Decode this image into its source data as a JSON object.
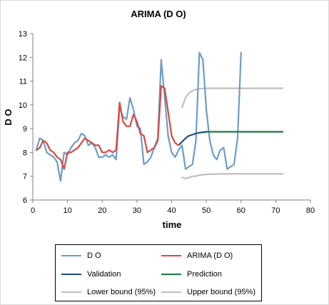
{
  "chart_data": {
    "type": "line",
    "title": "ARIMA (D O)",
    "xlabel": "time",
    "ylabel": "D O",
    "xlim": [
      0,
      80
    ],
    "ylim": [
      6,
      13
    ],
    "x_ticks": [
      0,
      10,
      20,
      30,
      40,
      50,
      60,
      70,
      80
    ],
    "y_ticks": [
      6,
      7,
      8,
      9,
      10,
      11,
      12,
      13
    ],
    "grid": false,
    "legend_position": "bottom",
    "series": [
      {
        "name": "D O",
        "color": "#6a9ecb",
        "x": [
          1,
          2,
          3,
          4,
          5,
          6,
          7,
          8,
          9,
          10,
          11,
          12,
          13,
          14,
          15,
          16,
          17,
          18,
          19,
          20,
          21,
          22,
          23,
          24,
          25,
          26,
          27,
          28,
          29,
          30,
          31,
          32,
          33,
          34,
          35,
          36,
          37,
          38,
          39,
          40,
          41,
          42,
          43,
          44,
          45,
          46,
          47,
          48,
          49,
          50,
          51,
          52,
          53,
          54,
          55,
          56,
          57,
          58,
          59,
          60
        ],
        "y": [
          8.1,
          8.6,
          8.5,
          8.0,
          7.9,
          7.8,
          7.6,
          6.8,
          8.0,
          7.9,
          8.2,
          8.4,
          8.5,
          8.8,
          8.7,
          8.3,
          8.4,
          8.2,
          7.8,
          7.8,
          7.9,
          7.8,
          7.9,
          7.7,
          9.9,
          9.5,
          9.4,
          10.3,
          9.8,
          9.1,
          9.0,
          7.5,
          7.6,
          7.8,
          8.2,
          8.6,
          11.9,
          10.3,
          8.7,
          8.0,
          7.8,
          8.1,
          8.3,
          7.3,
          7.4,
          7.5,
          8.5,
          12.2,
          11.9,
          9.8,
          8.5,
          7.9,
          7.7,
          8.1,
          8.2,
          7.3,
          7.4,
          7.5,
          8.6,
          12.2
        ]
      },
      {
        "name": "ARIMA (D O)",
        "color": "#d9473f",
        "x": [
          1,
          2,
          3,
          4,
          5,
          6,
          7,
          8,
          9,
          10,
          11,
          12,
          13,
          14,
          15,
          16,
          17,
          18,
          19,
          20,
          21,
          22,
          23,
          24,
          25,
          26,
          27,
          28,
          29,
          30,
          31,
          32,
          33,
          34,
          35,
          36,
          37,
          38,
          39,
          40,
          41,
          42
        ],
        "y": [
          8.1,
          8.2,
          8.5,
          8.4,
          8.1,
          8.0,
          7.8,
          7.7,
          7.3,
          8.0,
          8.0,
          8.1,
          8.2,
          8.4,
          8.6,
          8.5,
          8.4,
          8.3,
          8.3,
          8.0,
          8.0,
          8.1,
          8.0,
          8.1,
          10.1,
          9.3,
          9.1,
          9.1,
          9.6,
          9.3,
          8.8,
          8.7,
          8.0,
          8.1,
          8.2,
          8.5,
          10.8,
          10.7,
          9.7,
          8.7,
          8.4,
          8.3
        ]
      },
      {
        "name": "Validation",
        "color": "#1f4e79",
        "x": [
          42,
          43,
          44,
          45,
          46,
          47,
          48,
          49,
          50
        ],
        "y": [
          8.3,
          8.45,
          8.6,
          8.7,
          8.75,
          8.8,
          8.83,
          8.85,
          8.87
        ]
      },
      {
        "name": "Prediction",
        "color": "#1b7a3e",
        "x": [
          50,
          55,
          60,
          65,
          70,
          72
        ],
        "y": [
          8.87,
          8.87,
          8.87,
          8.87,
          8.87,
          8.87
        ]
      },
      {
        "name": "Lower bound (95%)",
        "color": "#bfbfbf",
        "x": [
          43,
          44,
          45,
          46,
          47,
          48,
          50,
          55,
          60,
          65,
          70,
          72
        ],
        "y": [
          6.95,
          6.9,
          6.95,
          7.0,
          7.0,
          7.05,
          7.08,
          7.1,
          7.1,
          7.1,
          7.1,
          7.1
        ]
      },
      {
        "name": "Upper bound (95%)",
        "color": "#bfbfbf",
        "x": [
          43,
          44,
          45,
          46,
          47,
          48,
          50,
          55,
          60,
          65,
          70,
          72
        ],
        "y": [
          9.9,
          10.3,
          10.5,
          10.6,
          10.65,
          10.68,
          10.7,
          10.7,
          10.7,
          10.7,
          10.7,
          10.7
        ]
      }
    ]
  },
  "legend": {
    "items": [
      {
        "label": "D O",
        "color": "#6a9ecb"
      },
      {
        "label": "ARIMA (D O)",
        "color": "#d9473f"
      },
      {
        "label": "Validation",
        "color": "#1f4e79"
      },
      {
        "label": "Prediction",
        "color": "#1b7a3e"
      },
      {
        "label": "Lower bound (95%)",
        "color": "#bfbfbf"
      },
      {
        "label": "Upper bound (95%)",
        "color": "#bfbfbf"
      }
    ]
  }
}
